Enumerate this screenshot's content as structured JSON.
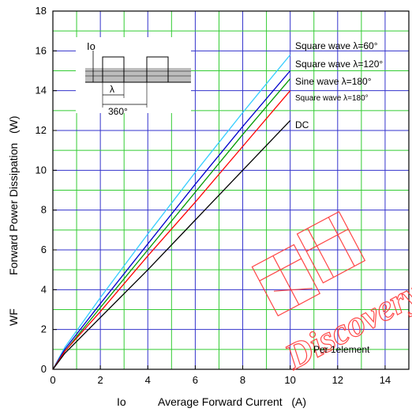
{
  "chart_data": {
    "type": "line",
    "title": "",
    "xlabel": "Average Forward Current   (A)",
    "xlabel_prefix": "Io",
    "ylabel": "Forward Power Dissipation   (W)",
    "ylabel_prefix": "WF",
    "xlim": [
      0,
      15
    ],
    "ylim": [
      0,
      18
    ],
    "x_ticks": [
      0,
      2,
      4,
      6,
      8,
      10,
      12,
      14
    ],
    "y_ticks": [
      0,
      2,
      4,
      6,
      8,
      10,
      12,
      14,
      16,
      18
    ],
    "grid": true,
    "series": [
      {
        "name": "Square wave λ=60°",
        "color": "#33ccff",
        "x": [
          0,
          0.5,
          2,
          4,
          6,
          8,
          10
        ],
        "y": [
          0,
          1.1,
          3.6,
          6.8,
          9.9,
          12.9,
          15.8
        ]
      },
      {
        "name": "Square wave λ=120°",
        "color": "#0000cc",
        "x": [
          0,
          0.5,
          2,
          4,
          6,
          8,
          10
        ],
        "y": [
          0,
          1.0,
          3.3,
          6.3,
          9.3,
          12.2,
          15.0
        ]
      },
      {
        "name": "Sine wave λ=180°",
        "color": "#009900",
        "x": [
          0,
          0.5,
          2,
          4,
          6,
          8,
          10
        ],
        "y": [
          0,
          0.9,
          3.1,
          6.0,
          8.9,
          11.8,
          14.6
        ]
      },
      {
        "name": "Square wave λ=180°",
        "color": "#ff0000",
        "x": [
          0,
          0.5,
          2,
          4,
          6,
          8,
          10
        ],
        "y": [
          0,
          0.9,
          2.9,
          5.7,
          8.4,
          11.2,
          14.0
        ]
      },
      {
        "name": "DC",
        "color": "#000000",
        "x": [
          0,
          0.5,
          2,
          4,
          6,
          8,
          10
        ],
        "y": [
          0,
          0.8,
          2.6,
          5.0,
          7.5,
          10.0,
          12.5
        ]
      }
    ],
    "annotations": {
      "per_element": "Per 1element",
      "inset_io": "Io",
      "inset_lambda": "λ",
      "inset_360": "360°"
    },
    "watermark": "Discovery"
  }
}
